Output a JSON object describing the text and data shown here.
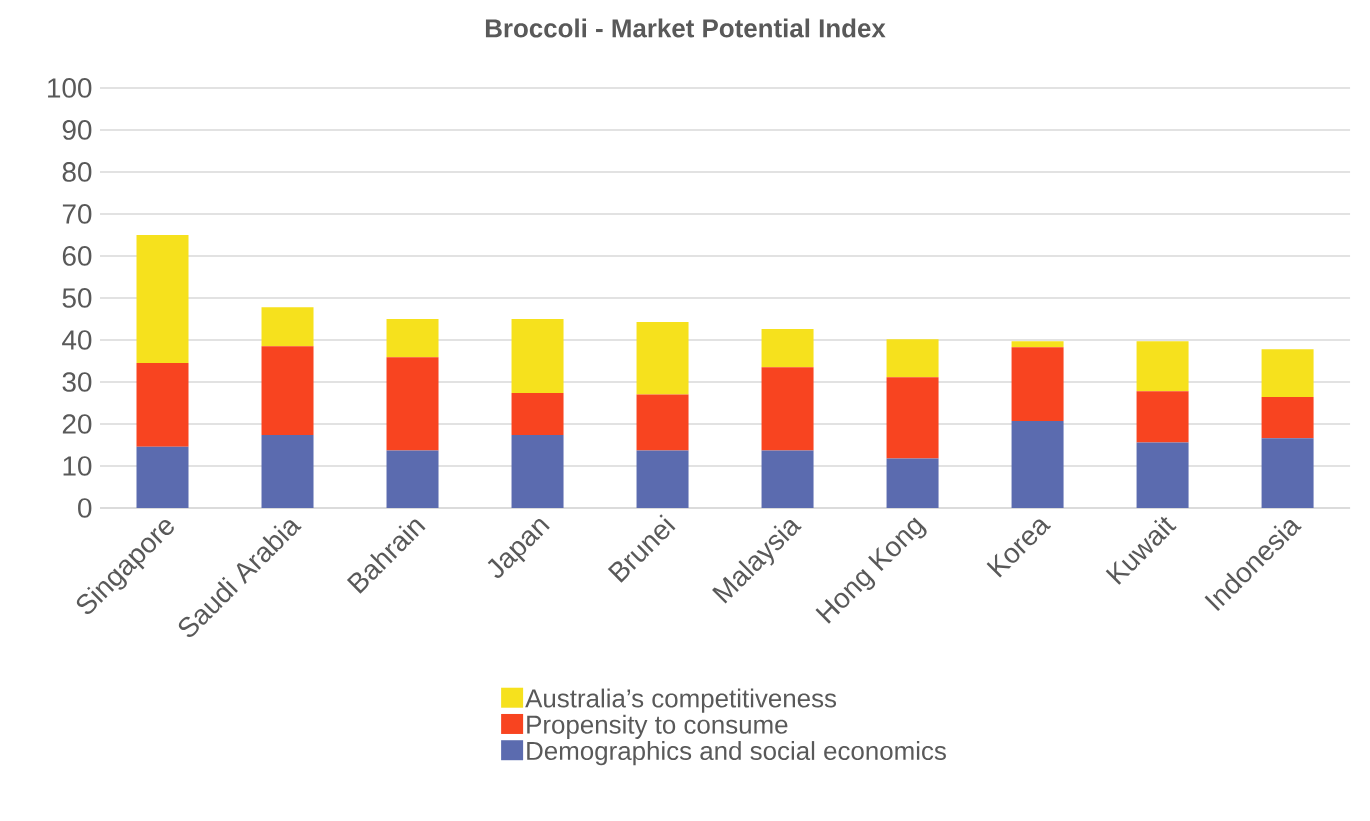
{
  "chart_data": {
    "type": "bar",
    "title": "Broccoli - Market Potential Index",
    "categories": [
      "Singapore",
      "Saudi Arabia",
      "Bahrain",
      "Japan",
      "Brunei",
      "Malaysia",
      "Hong Kong",
      "Korea",
      "Kuwait",
      "Indonesia"
    ],
    "stacked": true,
    "series": [
      {
        "name": "Demographics and social economics",
        "color": "#5b6baf",
        "values": [
          14.6,
          17.4,
          13.7,
          17.4,
          13.7,
          13.7,
          11.8,
          20.7,
          15.6,
          16.6
        ]
      },
      {
        "name": "Propensity to consume",
        "color": "#f84420",
        "values": [
          19.9,
          21.1,
          22.2,
          10.0,
          13.3,
          19.8,
          19.3,
          17.6,
          12.2,
          9.8
        ]
      },
      {
        "name": "Australia’s competitiveness",
        "color": "#f6e11d",
        "values": [
          30.5,
          9.3,
          9.1,
          17.6,
          17.3,
          9.1,
          9.1,
          1.4,
          11.9,
          11.4
        ]
      }
    ],
    "ylim": [
      0,
      100
    ],
    "yticks": [
      0,
      10,
      20,
      30,
      40,
      50,
      60,
      70,
      80,
      90,
      100
    ],
    "grid": "y",
    "legend": "bottom"
  }
}
